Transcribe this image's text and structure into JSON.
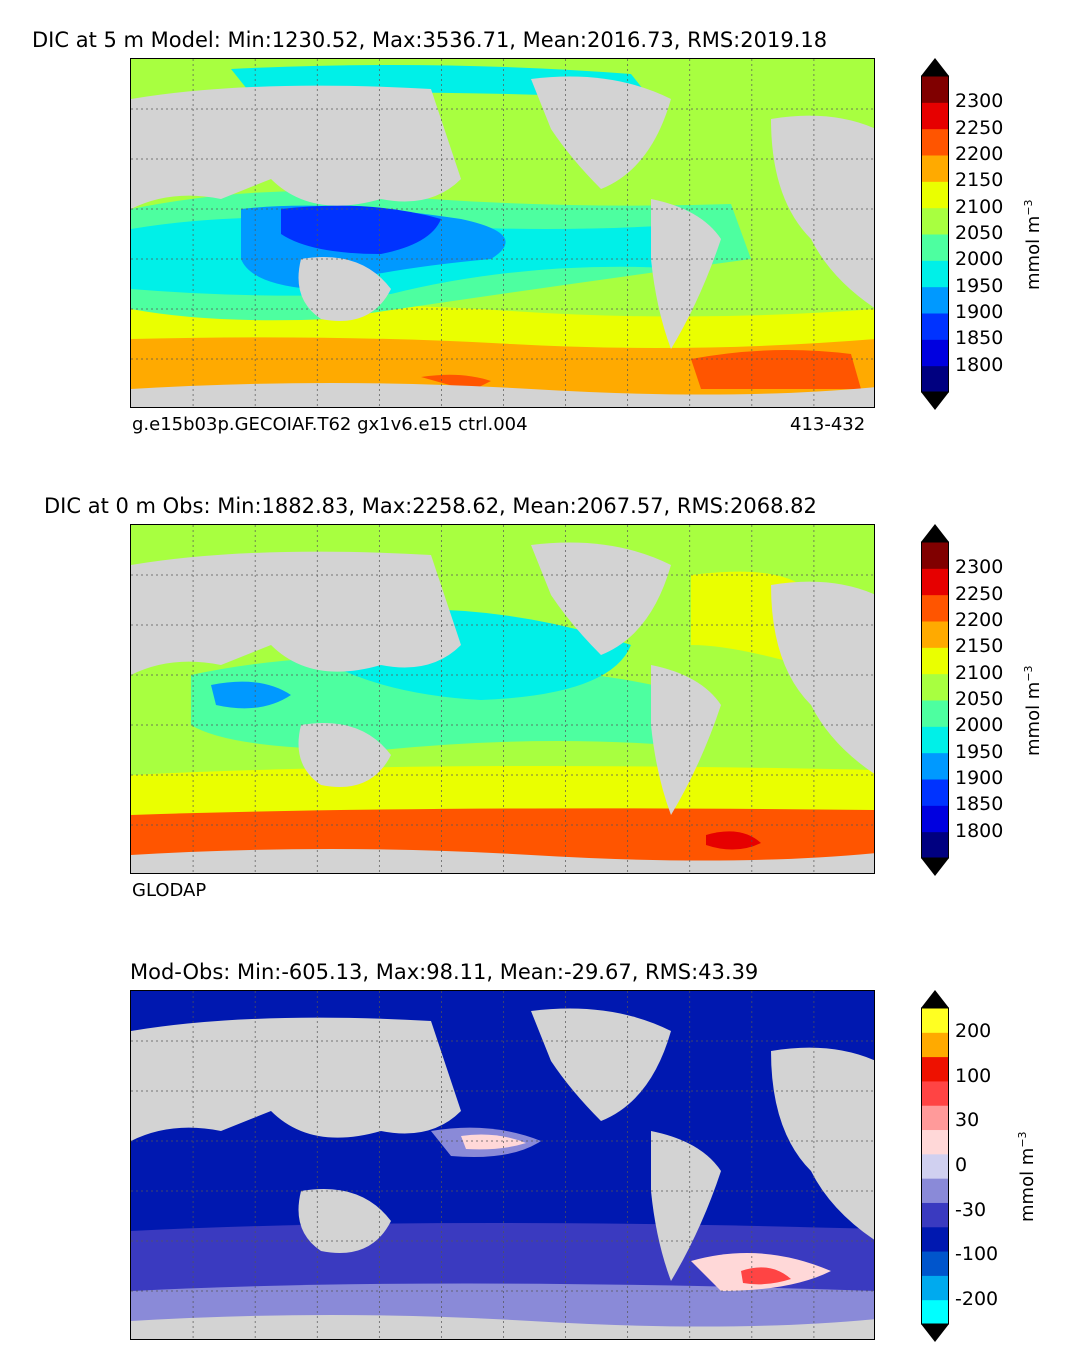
{
  "chart_data": [
    {
      "type": "heatmap",
      "title": "DIC at 5 m Model: Min:1230.52, Max:3536.71, Mean:2016.73, RMS:2019.18",
      "stats": {
        "min": 1230.52,
        "max": 3536.71,
        "mean": 2016.73,
        "rms": 2019.18
      },
      "caption_left": "g.e15b03p.GECOIAF.T62 gx1v6.e15 ctrl.004",
      "caption_right": "413-432",
      "colorbar": {
        "label": "mmol m",
        "label_exp": "−3",
        "ticks": [
          "2300",
          "2250",
          "2200",
          "2150",
          "2100",
          "2050",
          "2000",
          "1950",
          "1900",
          "1850",
          "1800"
        ],
        "levels": [
          1800,
          1850,
          1900,
          1950,
          2000,
          2050,
          2100,
          2150,
          2200,
          2250,
          2300
        ],
        "colors": [
          "#000080",
          "#0000e0",
          "#0033ff",
          "#0099ff",
          "#00f0e8",
          "#4dffa0",
          "#a8ff40",
          "#eaff00",
          "#ffaa00",
          "#ff5500",
          "#e60000",
          "#800000"
        ],
        "extend": "both"
      }
    },
    {
      "type": "heatmap",
      "title": "DIC at 0 m Obs: Min:1882.83, Max:2258.62, Mean:2067.57, RMS:2068.82",
      "stats": {
        "min": 1882.83,
        "max": 2258.62,
        "mean": 2067.57,
        "rms": 2068.82
      },
      "caption_left": "GLODAP",
      "colorbar": {
        "label": "mmol m",
        "label_exp": "−3",
        "ticks": [
          "2300",
          "2250",
          "2200",
          "2150",
          "2100",
          "2050",
          "2000",
          "1950",
          "1900",
          "1850",
          "1800"
        ],
        "levels": [
          1800,
          1850,
          1900,
          1950,
          2000,
          2050,
          2100,
          2150,
          2200,
          2250,
          2300
        ],
        "colors": [
          "#000080",
          "#0000e0",
          "#0033ff",
          "#0099ff",
          "#00f0e8",
          "#4dffa0",
          "#a8ff40",
          "#eaff00",
          "#ffaa00",
          "#ff5500",
          "#e60000",
          "#800000"
        ],
        "extend": "both"
      }
    },
    {
      "type": "heatmap",
      "title": "Mod-Obs: Min:-605.13, Max:98.11, Mean:-29.67, RMS:43.39",
      "stats": {
        "min": -605.13,
        "max": 98.11,
        "mean": -29.67,
        "rms": 43.39
      },
      "colorbar": {
        "label": "mmol m",
        "label_exp": "−3",
        "ticks": [
          "200",
          "100",
          "30",
          "0",
          "-30",
          "-100",
          "-200"
        ],
        "colors": [
          "#00ffff",
          "#00aaee",
          "#0055cc",
          "#0018b0",
          "#3a3ac0",
          "#8a8ad8",
          "#d0d0f0",
          "#ffd8d8",
          "#ff9a9a",
          "#ff4444",
          "#ee1100",
          "#ffaa00",
          "#ffff22"
        ],
        "extend": "both"
      }
    }
  ]
}
